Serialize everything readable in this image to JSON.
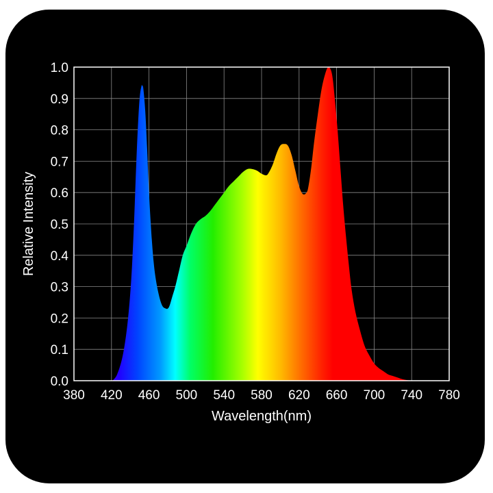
{
  "chart_data": {
    "type": "area",
    "title": "",
    "xlabel": "Wavelength(nm)",
    "ylabel": "Relative Intensity",
    "xlim": [
      380,
      780
    ],
    "ylim": [
      0.0,
      1.0
    ],
    "grid": true,
    "x_ticks": [
      "380",
      "420",
      "460",
      "500",
      "540",
      "580",
      "620",
      "660",
      "700",
      "740",
      "780"
    ],
    "y_ticks": [
      "0.0",
      "0.1",
      "0.2",
      "0.3",
      "0.4",
      "0.5",
      "0.6",
      "0.7",
      "0.8",
      "0.9",
      "1.0"
    ],
    "fill": "visible-spectrum gradient (blue to red)",
    "series": [
      {
        "x": [
          421,
          426,
          432,
          437,
          441,
          444,
          446,
          448,
          450,
          452,
          453,
          454,
          456,
          458,
          460,
          463,
          466,
          470,
          474,
          478,
          480,
          482,
          485,
          488,
          492,
          496,
          500,
          505,
          510,
          515,
          520,
          525,
          530,
          535,
          540,
          545,
          550,
          555,
          560,
          565,
          570,
          575,
          580,
          585,
          588,
          592,
          596,
          600,
          604,
          608,
          612,
          616,
          620,
          624,
          628,
          630,
          633,
          636,
          640,
          644,
          648,
          651,
          654,
          656,
          658,
          661,
          664,
          667,
          670,
          673,
          676,
          680,
          685,
          690,
          695,
          700,
          705,
          710,
          715,
          720,
          725,
          730,
          735,
          740
        ],
        "y": [
          0.0,
          0.02,
          0.08,
          0.18,
          0.32,
          0.5,
          0.66,
          0.8,
          0.9,
          0.94,
          0.94,
          0.93,
          0.86,
          0.74,
          0.6,
          0.45,
          0.35,
          0.28,
          0.24,
          0.23,
          0.23,
          0.24,
          0.27,
          0.3,
          0.35,
          0.4,
          0.43,
          0.47,
          0.5,
          0.515,
          0.525,
          0.54,
          0.56,
          0.58,
          0.6,
          0.62,
          0.635,
          0.65,
          0.665,
          0.675,
          0.675,
          0.67,
          0.66,
          0.655,
          0.665,
          0.69,
          0.725,
          0.75,
          0.755,
          0.75,
          0.72,
          0.67,
          0.62,
          0.595,
          0.6,
          0.62,
          0.68,
          0.76,
          0.85,
          0.93,
          0.98,
          1.0,
          0.99,
          0.96,
          0.9,
          0.8,
          0.68,
          0.56,
          0.46,
          0.37,
          0.29,
          0.22,
          0.16,
          0.11,
          0.08,
          0.055,
          0.04,
          0.03,
          0.02,
          0.015,
          0.01,
          0.005,
          0.002,
          0.0
        ]
      }
    ]
  }
}
